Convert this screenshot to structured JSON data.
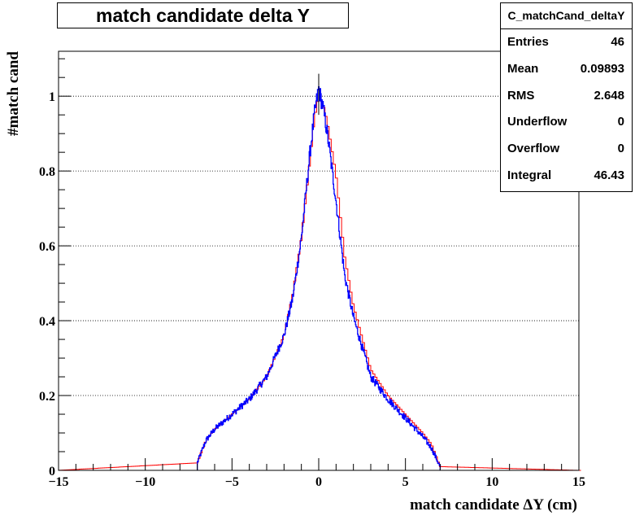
{
  "title": "match candidate delta Y",
  "stats": {
    "name": "C_matchCand_deltaY",
    "rows": [
      {
        "label": "Entries",
        "value": "46"
      },
      {
        "label": "Mean",
        "value": "0.09893"
      },
      {
        "label": "RMS",
        "value": "2.648"
      },
      {
        "label": "Underflow",
        "value": "0"
      },
      {
        "label": "Overflow",
        "value": "0"
      },
      {
        "label": "Integral",
        "value": "46.43"
      }
    ]
  },
  "chart_data": {
    "type": "line",
    "title": "match candidate delta Y",
    "xlabel": "match candidate  ΔY (cm)",
    "ylabel": "#match cand",
    "xlim": [
      -15,
      15
    ],
    "ylim": [
      0,
      1.12
    ],
    "xticks": [
      -15,
      -10,
      -5,
      0,
      5,
      10,
      15
    ],
    "xtick_labels": [
      "−15",
      "−10",
      "−5",
      "0",
      "5",
      "10",
      "15"
    ],
    "yticks": [
      0,
      0.2,
      0.4,
      0.6,
      0.8,
      1
    ],
    "ytick_labels": [
      "0",
      "0.2",
      "0.4",
      "0.6",
      "0.8",
      "1"
    ],
    "grid": "horizontal-dotted",
    "series": [
      {
        "color": "#ff0000",
        "style": "step",
        "x": [
          -15,
          -7.0,
          -6.5,
          -6.0,
          -5.0,
          -4.0,
          -3.0,
          -2.0,
          -1.5,
          -1.0,
          -0.5,
          -0.25,
          0.0,
          0.25,
          0.5,
          1.0,
          1.5,
          2.0,
          3.0,
          4.0,
          5.0,
          6.0,
          6.5,
          7.0,
          15
        ],
        "y": [
          0,
          0.02,
          0.08,
          0.11,
          0.15,
          0.19,
          0.25,
          0.36,
          0.47,
          0.62,
          0.83,
          0.94,
          1.0,
          0.98,
          0.93,
          0.79,
          0.57,
          0.44,
          0.27,
          0.2,
          0.15,
          0.1,
          0.07,
          0.01,
          0
        ]
      },
      {
        "color": "#0000ff",
        "style": "noisy-step",
        "x": [
          -7.0,
          -6.5,
          -6.0,
          -5.0,
          -4.0,
          -3.0,
          -2.0,
          -1.5,
          -1.0,
          -0.5,
          -0.25,
          0.0,
          0.25,
          0.5,
          1.0,
          1.5,
          2.0,
          3.0,
          4.0,
          5.0,
          6.0,
          6.5,
          7.0
        ],
        "y": [
          0.02,
          0.08,
          0.11,
          0.15,
          0.19,
          0.25,
          0.36,
          0.46,
          0.62,
          0.85,
          0.95,
          1.02,
          0.97,
          0.9,
          0.72,
          0.52,
          0.41,
          0.25,
          0.19,
          0.14,
          0.09,
          0.06,
          0.01
        ]
      }
    ]
  }
}
